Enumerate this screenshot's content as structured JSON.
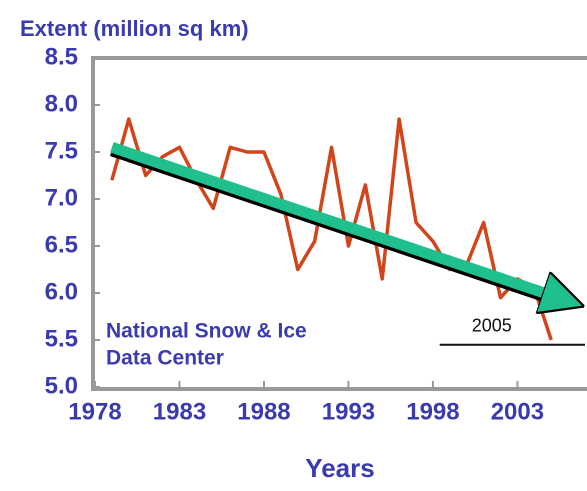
{
  "chart_data": {
    "type": "line",
    "title": "Extent (million sq km)",
    "x_label": "Years",
    "source": [
      "National Snow & Ice",
      "Data Center"
    ],
    "x": [
      1979,
      1980,
      1981,
      1982,
      1983,
      1984,
      1985,
      1986,
      1987,
      1988,
      1989,
      1990,
      1991,
      1992,
      1993,
      1994,
      1995,
      1996,
      1997,
      1998,
      1999,
      2000,
      2001,
      2002,
      2003,
      2004,
      2005
    ],
    "series": [
      {
        "name": "Extent",
        "color": "#d2451b",
        "values": [
          7.2,
          7.85,
          7.25,
          7.45,
          7.55,
          7.2,
          6.9,
          7.55,
          7.5,
          7.5,
          7.05,
          6.25,
          6.55,
          7.55,
          6.5,
          7.15,
          6.15,
          7.85,
          6.75,
          6.55,
          6.25,
          6.3,
          6.75,
          5.95,
          6.15,
          6.05,
          5.5
        ]
      }
    ],
    "trend": {
      "x": [
        1979,
        2006.6
      ],
      "values": [
        7.55,
        5.95
      ],
      "color": "#1fc08e"
    },
    "annotation": {
      "text": "2005",
      "y": 5.45,
      "x": [
        1998.4,
        2007
      ]
    },
    "xlim": [
      1978,
      2007
    ],
    "ylim": [
      5,
      8.5
    ],
    "xticks": [
      1978,
      1983,
      1988,
      1993,
      1998,
      2003
    ],
    "yticks": [
      {
        "value": 5,
        "label": "5.0"
      },
      5.5,
      {
        "value": 6,
        "label": "6.0"
      },
      6.5,
      {
        "value": 7,
        "label": "7.0"
      },
      7.5,
      {
        "value": 8,
        "label": "8.0"
      },
      8.5
    ]
  }
}
